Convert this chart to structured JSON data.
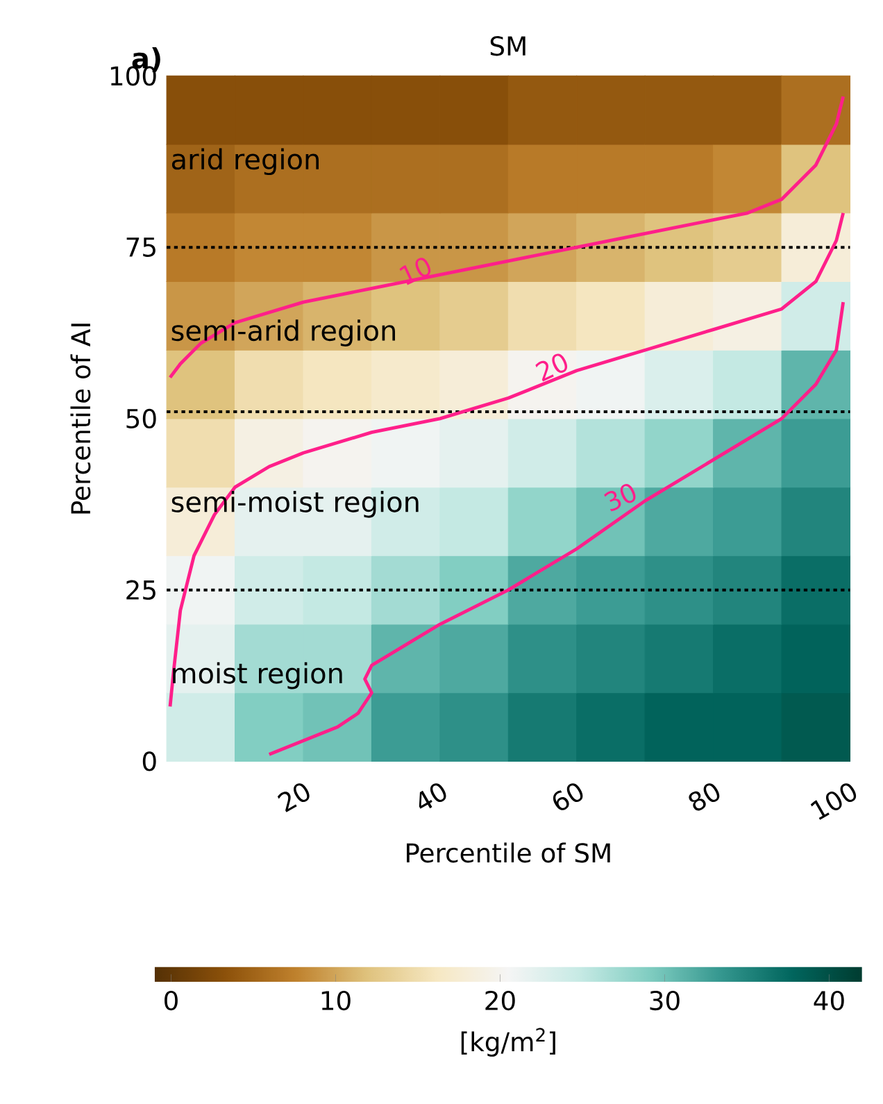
{
  "chart_data": {
    "type": "heatmap",
    "title": "SM",
    "xlabel": "Percentile of SM",
    "ylabel": "Percentile of AI",
    "clabel": "[kg/m$^{2}$]",
    "cells": [
      [
        3,
        3,
        3,
        3,
        3,
        4,
        4,
        4,
        4,
        6
      ],
      [
        5,
        6,
        6,
        6,
        6,
        7,
        7,
        7,
        8,
        12
      ],
      [
        7,
        8,
        8,
        9,
        9,
        10,
        11,
        12,
        13,
        18
      ],
      [
        9,
        10,
        11,
        12,
        13,
        15,
        16,
        18,
        19,
        24
      ],
      [
        12,
        15,
        16,
        17,
        18,
        20,
        21,
        23,
        25,
        31
      ],
      [
        15,
        19,
        20,
        21,
        22,
        24,
        26,
        28,
        31,
        33
      ],
      [
        18,
        22,
        22,
        24,
        25,
        28,
        30,
        32,
        33,
        35
      ],
      [
        21,
        24,
        25,
        27,
        29,
        32,
        33,
        34,
        35,
        37
      ],
      [
        22,
        27,
        27,
        31,
        32,
        34,
        35,
        36,
        37,
        38
      ],
      [
        24,
        29,
        30,
        33,
        34,
        36,
        37,
        38,
        38,
        39
      ]
    ],
    "clim": [
      -1,
      42
    ],
    "cticks": [
      0,
      10,
      20,
      30,
      40
    ],
    "xlim": [
      0,
      100
    ],
    "ylim": [
      0,
      100
    ],
    "xticks": [
      20,
      40,
      60,
      80,
      100
    ],
    "yticks": [
      0,
      25,
      50,
      75,
      100
    ],
    "series": [
      {
        "type": "line",
        "color": "#ff1f8a",
        "x": [
          0.5,
          2,
          5,
          10,
          20,
          30,
          40,
          50,
          60,
          70,
          80,
          85,
          90,
          95,
          98,
          99
        ],
        "values": [
          56,
          58,
          61,
          64,
          67,
          69,
          71,
          73,
          75,
          77,
          79,
          80,
          82,
          87,
          93,
          97
        ]
      },
      {
        "type": "line",
        "color": "#ff1f8a",
        "x": [
          0.5,
          1,
          2,
          4,
          7,
          10,
          15,
          20,
          30,
          40,
          50,
          60,
          70,
          80,
          90,
          95,
          98,
          99
        ],
        "values": [
          8,
          13,
          22,
          30,
          36,
          40,
          43,
          45,
          48,
          50,
          53,
          57,
          60,
          63,
          66,
          70,
          76,
          80
        ]
      },
      {
        "type": "line",
        "color": "#ff1f8a",
        "x": [
          15,
          20,
          25,
          28,
          30,
          29,
          30,
          35,
          40,
          50,
          60,
          70,
          80,
          90,
          95,
          98,
          99
        ],
        "values": [
          1,
          3,
          5,
          7,
          10,
          12,
          14,
          17,
          20,
          25,
          31,
          38,
          44,
          50,
          55,
          60,
          67
        ]
      }
    ],
    "ref_lines": [
      {
        "axis": "y",
        "value": 75,
        "color": "#000000",
        "line_style": "dotted"
      },
      {
        "axis": "y",
        "value": 51,
        "color": "#000000",
        "line_style": "dotted"
      },
      {
        "axis": "y",
        "value": 25,
        "color": "#000000",
        "line_style": "dotted"
      }
    ],
    "annotations": [
      "a)",
      "arid region",
      "semi-arid region",
      "semi-moist region",
      "moist region",
      {
        "text": "10",
        "x": 40,
        "y": 71
      },
      {
        "text": "20",
        "x": 60,
        "y": 57
      },
      {
        "text": "30",
        "x": 70,
        "y": 38
      }
    ]
  }
}
